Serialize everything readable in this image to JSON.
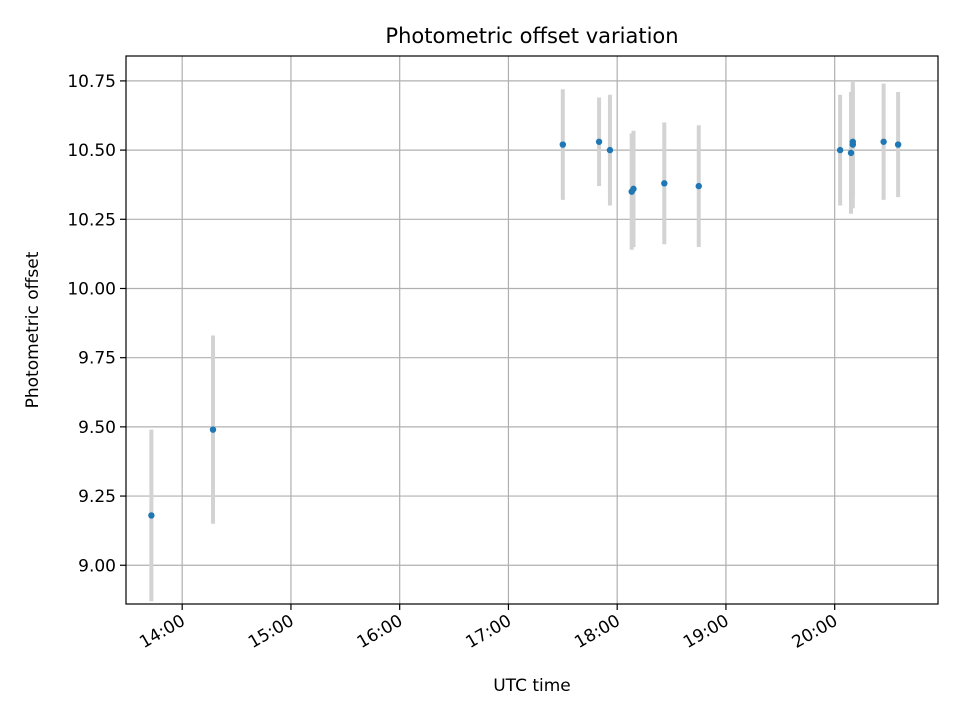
{
  "chart_data": {
    "type": "scatter",
    "title": "Photometric offset variation",
    "xlabel": "UTC time",
    "ylabel": "Photometric offset",
    "x_unit": "time",
    "xlim": [
      "13:29",
      "20:57"
    ],
    "ylim": [
      8.86,
      10.84
    ],
    "x_ticks": [
      "14:00",
      "15:00",
      "16:00",
      "17:00",
      "18:00",
      "19:00",
      "20:00"
    ],
    "y_ticks": [
      "9.00",
      "9.25",
      "9.50",
      "9.75",
      "10.00",
      "10.25",
      "10.50",
      "10.75"
    ],
    "grid": true,
    "marker_color": "#1f77b4",
    "errorbar_color": "#d3d3d3",
    "points": [
      {
        "x": "13:43",
        "y": 9.18,
        "err": 0.31
      },
      {
        "x": "14:17",
        "y": 9.49,
        "err": 0.34
      },
      {
        "x": "17:30",
        "y": 10.52,
        "err": 0.2
      },
      {
        "x": "17:50",
        "y": 10.53,
        "err": 0.16
      },
      {
        "x": "17:56",
        "y": 10.5,
        "err": 0.2
      },
      {
        "x": "18:08",
        "y": 10.35,
        "err": 0.21
      },
      {
        "x": "18:09",
        "y": 10.36,
        "err": 0.21
      },
      {
        "x": "18:26",
        "y": 10.38,
        "err": 0.22
      },
      {
        "x": "18:45",
        "y": 10.37,
        "err": 0.22
      },
      {
        "x": "20:03",
        "y": 10.5,
        "err": 0.2
      },
      {
        "x": "20:09",
        "y": 10.49,
        "err": 0.22
      },
      {
        "x": "20:10",
        "y": 10.52,
        "err": 0.23
      },
      {
        "x": "20:10",
        "y": 10.53,
        "err": 0.2
      },
      {
        "x": "20:27",
        "y": 10.53,
        "err": 0.21
      },
      {
        "x": "20:35",
        "y": 10.52,
        "err": 0.19
      }
    ]
  }
}
